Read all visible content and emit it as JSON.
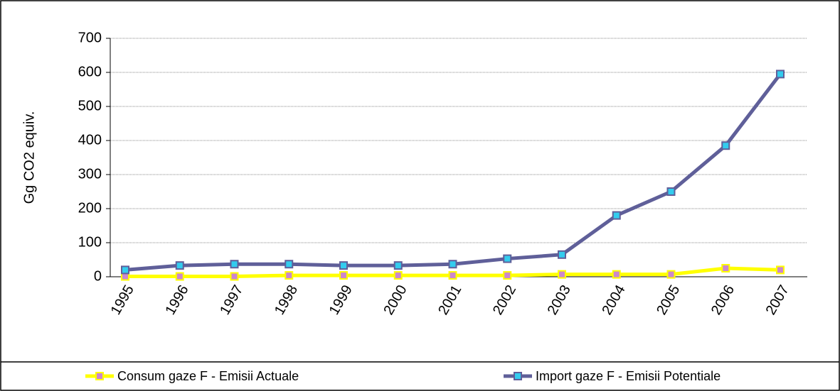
{
  "chart_data": {
    "type": "line",
    "y_label": "Gg CO2 equiv.",
    "categories": [
      "1995",
      "1996",
      "1997",
      "1998",
      "1999",
      "2000",
      "2001",
      "2002",
      "2003",
      "2004",
      "2005",
      "2006",
      "2007"
    ],
    "series": [
      {
        "name": "Consum gaze F - Emisii Actuale",
        "color": "#ffff00",
        "marker_color": "#cc88cc",
        "values": [
          1,
          1,
          1,
          4,
          4,
          4,
          4,
          4,
          7,
          7,
          7,
          25,
          20
        ]
      },
      {
        "name": "Import gaze F - Emisii Potentiale",
        "color": "#5f5f99",
        "marker_color": "#33ccee",
        "values": [
          20,
          33,
          37,
          37,
          33,
          33,
          37,
          53,
          65,
          180,
          250,
          385,
          595
        ]
      }
    ],
    "ylim": [
      0,
      700
    ],
    "yticks": [
      0,
      100,
      200,
      300,
      400,
      500,
      600,
      700
    ],
    "grid": true
  }
}
